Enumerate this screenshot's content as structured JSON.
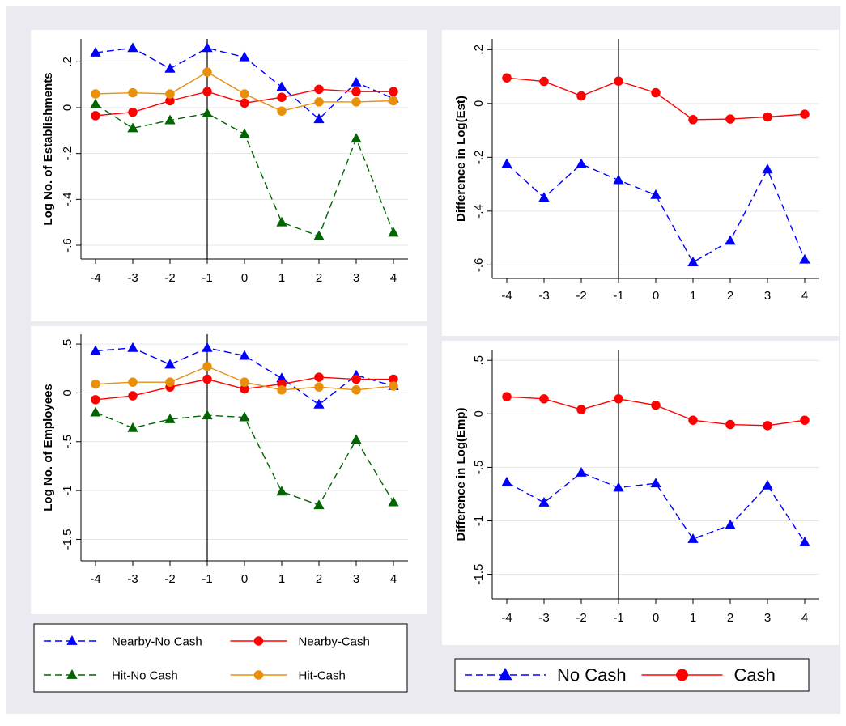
{
  "chart_data": [
    {
      "type": "line",
      "ylabel": "Log No. of Establishments",
      "xlabel": "",
      "x": [
        -4,
        -3,
        -2,
        -1,
        0,
        1,
        2,
        3,
        4
      ],
      "xticks": [
        "-4",
        "-3",
        "-2",
        "-1",
        "0",
        "1",
        "2",
        "3",
        "4"
      ],
      "yticks": [
        {
          "value": 0.2,
          "label": ".2"
        },
        {
          "value": 0,
          "label": "0"
        },
        {
          "value": -0.2,
          "label": "-.2"
        },
        {
          "value": -0.4,
          "label": "-.4"
        },
        {
          "value": -0.6,
          "label": "-.6"
        }
      ],
      "ylim": [
        -0.66,
        0.3
      ],
      "vline": -1,
      "grid": true,
      "series": [
        {
          "name": "Nearby-No Cash",
          "color": "#0000ff",
          "marker": "triangle",
          "dash": "dashed",
          "values": [
            0.24,
            0.26,
            0.17,
            0.26,
            0.22,
            0.09,
            -0.05,
            0.11,
            0.04
          ]
        },
        {
          "name": "Nearby-Cash",
          "color": "#ff0000",
          "marker": "circle",
          "dash": "solid",
          "values": [
            -0.035,
            -0.02,
            0.03,
            0.07,
            0.02,
            0.045,
            0.08,
            0.07,
            0.07
          ]
        },
        {
          "name": "Hit-No Cash",
          "color": "#006400",
          "marker": "triangle",
          "dash": "dashed",
          "values": [
            0.015,
            -0.09,
            -0.055,
            -0.025,
            -0.115,
            -0.5,
            -0.56,
            -0.135,
            -0.545
          ]
        },
        {
          "name": "Hit-Cash",
          "color": "#e8900c",
          "marker": "circle",
          "dash": "solid",
          "values": [
            0.06,
            0.065,
            0.06,
            0.155,
            0.06,
            -0.015,
            0.025,
            0.025,
            0.03
          ]
        }
      ]
    },
    {
      "type": "line",
      "ylabel": "Difference in Log(Est)",
      "xlabel": "",
      "x": [
        -4,
        -3,
        -2,
        -1,
        0,
        1,
        2,
        3,
        4
      ],
      "xticks": [
        "-4",
        "-3",
        "-2",
        "-1",
        "0",
        "1",
        "2",
        "3",
        "4"
      ],
      "yticks": [
        {
          "value": 0.2,
          "label": ".2"
        },
        {
          "value": 0,
          "label": "0"
        },
        {
          "value": -0.2,
          "label": "-.2"
        },
        {
          "value": -0.4,
          "label": "-.4"
        },
        {
          "value": -0.6,
          "label": "-.6"
        }
      ],
      "ylim": [
        -0.65,
        0.24
      ],
      "vline": -1,
      "grid": true,
      "series": [
        {
          "name": "No Cash",
          "color": "#0000ff",
          "marker": "triangle",
          "dash": "dashed",
          "values": [
            -0.225,
            -0.35,
            -0.225,
            -0.285,
            -0.34,
            -0.59,
            -0.51,
            -0.245,
            -0.58
          ]
        },
        {
          "name": "Cash",
          "color": "#ff0000",
          "marker": "circle",
          "dash": "solid",
          "values": [
            0.095,
            0.082,
            0.028,
            0.083,
            0.04,
            -0.06,
            -0.058,
            -0.05,
            -0.04
          ]
        }
      ]
    },
    {
      "type": "line",
      "ylabel": "Log No. of Employees",
      "xlabel": "",
      "x": [
        -4,
        -3,
        -2,
        -1,
        0,
        1,
        2,
        3,
        4
      ],
      "xticks": [
        "-4",
        "-3",
        "-2",
        "-1",
        "0",
        "1",
        "2",
        "3",
        "4"
      ],
      "yticks": [
        {
          "value": 0.5,
          "label": ".5"
        },
        {
          "value": 0,
          "label": "0"
        },
        {
          "value": -0.5,
          "label": "-.5"
        },
        {
          "value": -1,
          "label": "-1"
        },
        {
          "value": -1.5,
          "label": "-1.5"
        }
      ],
      "ylim": [
        -1.72,
        0.6
      ],
      "vline": -1,
      "grid": true,
      "series": [
        {
          "name": "Nearby-No Cash",
          "color": "#0000ff",
          "marker": "triangle",
          "dash": "dashed",
          "values": [
            0.43,
            0.46,
            0.29,
            0.46,
            0.38,
            0.15,
            -0.12,
            0.18,
            0.07
          ]
        },
        {
          "name": "Nearby-Cash",
          "color": "#ff0000",
          "marker": "circle",
          "dash": "solid",
          "values": [
            -0.07,
            -0.03,
            0.06,
            0.14,
            0.04,
            0.09,
            0.16,
            0.14,
            0.14
          ]
        },
        {
          "name": "Hit-No Cash",
          "color": "#006400",
          "marker": "triangle",
          "dash": "dashed",
          "values": [
            -0.2,
            -0.36,
            -0.27,
            -0.23,
            -0.25,
            -1.01,
            -1.15,
            -0.48,
            -1.12
          ]
        },
        {
          "name": "Hit-Cash",
          "color": "#e8900c",
          "marker": "circle",
          "dash": "solid",
          "values": [
            0.09,
            0.11,
            0.11,
            0.27,
            0.11,
            0.03,
            0.06,
            0.03,
            0.07
          ]
        }
      ]
    },
    {
      "type": "line",
      "ylabel": "Difference in Log(Emp)",
      "xlabel": "",
      "x": [
        -4,
        -3,
        -2,
        -1,
        0,
        1,
        2,
        3,
        4
      ],
      "xticks": [
        "-4",
        "-3",
        "-2",
        "-1",
        "0",
        "1",
        "2",
        "3",
        "4"
      ],
      "yticks": [
        {
          "value": 0.5,
          "label": ".5"
        },
        {
          "value": 0,
          "label": "0"
        },
        {
          "value": -0.5,
          "label": "-.5"
        },
        {
          "value": -1,
          "label": "-1"
        },
        {
          "value": -1.5,
          "label": "-1.5"
        }
      ],
      "ylim": [
        -1.73,
        0.6
      ],
      "vline": -1,
      "grid": true,
      "series": [
        {
          "name": "No Cash",
          "color": "#0000ff",
          "marker": "triangle",
          "dash": "dashed",
          "values": [
            -0.64,
            -0.83,
            -0.55,
            -0.69,
            -0.65,
            -1.17,
            -1.04,
            -0.67,
            -1.2
          ]
        },
        {
          "name": "Cash",
          "color": "#ff0000",
          "marker": "circle",
          "dash": "solid",
          "values": [
            0.16,
            0.14,
            0.04,
            0.14,
            0.08,
            -0.06,
            -0.1,
            -0.11,
            -0.06
          ]
        }
      ]
    }
  ],
  "legends": {
    "left": {
      "items": [
        {
          "label": "Nearby-No Cash",
          "color": "#0000ff",
          "marker": "triangle",
          "dash": "dashed"
        },
        {
          "label": "Nearby-Cash",
          "color": "#ff0000",
          "marker": "circle",
          "dash": "solid"
        },
        {
          "label": "Hit-No Cash",
          "color": "#006400",
          "marker": "triangle",
          "dash": "dashed"
        },
        {
          "label": "Hit-Cash",
          "color": "#e8900c",
          "marker": "circle",
          "dash": "solid"
        }
      ]
    },
    "right": {
      "items": [
        {
          "label": "No Cash",
          "color": "#0000ff",
          "marker": "triangle",
          "dash": "dashed"
        },
        {
          "label": "Cash",
          "color": "#ff0000",
          "marker": "circle",
          "dash": "solid"
        }
      ]
    }
  },
  "colors": {
    "outer_background": "#eaeaf0",
    "panel_background": "#ffffff",
    "grid": "#e6e6e6"
  }
}
